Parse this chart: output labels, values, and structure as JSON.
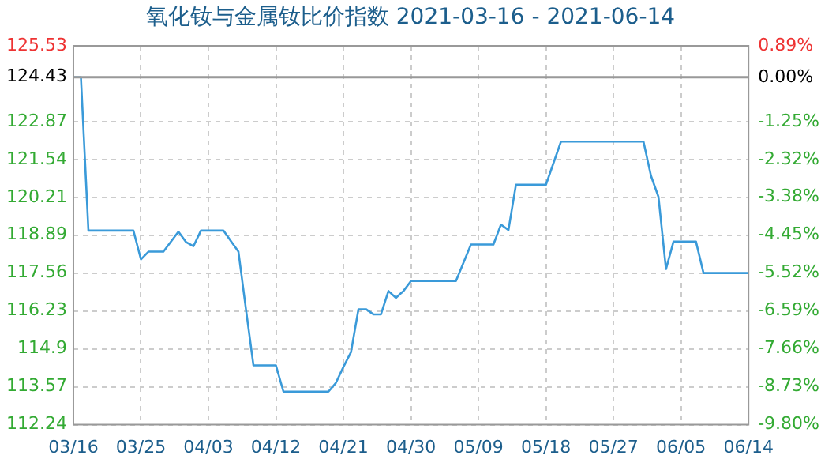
{
  "chart_data": {
    "type": "line",
    "title": "氧化钕与金属钕比价指数 2021-03-16 - 2021-06-14",
    "x": [
      "2021-03-16",
      "2021-03-17",
      "2021-03-18",
      "2021-03-24",
      "2021-03-25",
      "2021-03-26",
      "2021-03-28",
      "2021-03-30",
      "2021-03-31",
      "2021-04-01",
      "2021-04-02",
      "2021-04-05",
      "2021-04-06",
      "2021-04-07",
      "2021-04-08",
      "2021-04-09",
      "2021-04-12",
      "2021-04-13",
      "2021-04-19",
      "2021-04-20",
      "2021-04-21",
      "2021-04-22",
      "2021-04-23",
      "2021-04-24",
      "2021-04-25",
      "2021-04-26",
      "2021-04-27",
      "2021-04-28",
      "2021-04-29",
      "2021-04-30",
      "2021-05-06",
      "2021-05-08",
      "2021-05-11",
      "2021-05-12",
      "2021-05-13",
      "2021-05-14",
      "2021-05-18",
      "2021-05-20",
      "2021-05-31",
      "2021-06-01",
      "2021-06-02",
      "2021-06-03",
      "2021-06-04",
      "2021-06-07",
      "2021-06-08",
      "2021-06-14"
    ],
    "series": [
      {
        "color": "#3a9ad9",
        "values": [
          124.43,
          124.43,
          119.05,
          119.05,
          118.04,
          118.31,
          118.31,
          119.01,
          118.65,
          118.5,
          119.05,
          119.05,
          118.68,
          118.31,
          116.29,
          114.32,
          114.32,
          113.4,
          113.4,
          113.71,
          114.27,
          114.78,
          116.29,
          116.29,
          116.11,
          116.11,
          116.93,
          116.69,
          116.93,
          117.28,
          117.28,
          118.56,
          118.56,
          119.26,
          119.07,
          120.66,
          120.66,
          122.17,
          122.17,
          120.97,
          120.23,
          117.7,
          118.66,
          118.66,
          117.56,
          117.56
        ]
      }
    ],
    "xlim": [
      "2021-03-16",
      "2021-06-14"
    ],
    "xticks": [
      {
        "value": "2021-03-16",
        "label": "03/16"
      },
      {
        "value": "2021-03-25",
        "label": "03/25"
      },
      {
        "value": "2021-04-03",
        "label": "04/03"
      },
      {
        "value": "2021-04-12",
        "label": "04/12"
      },
      {
        "value": "2021-04-21",
        "label": "04/21"
      },
      {
        "value": "2021-04-30",
        "label": "04/30"
      },
      {
        "value": "2021-05-09",
        "label": "05/09"
      },
      {
        "value": "2021-05-18",
        "label": "05/18"
      },
      {
        "value": "2021-05-27",
        "label": "05/27"
      },
      {
        "value": "2021-06-05",
        "label": "06/05"
      },
      {
        "value": "2021-06-14",
        "label": "06/14"
      }
    ],
    "ylim": [
      112.24,
      125.53
    ],
    "yticks": [
      112.24,
      113.57,
      114.9,
      116.23,
      117.56,
      118.89,
      120.21,
      121.54,
      122.87,
      124.43,
      125.53
    ],
    "y2lim": [
      -9.8,
      0.89
    ],
    "y2ticks": [
      {
        "value": -9.8,
        "label": "-9.80%"
      },
      {
        "value": -8.73,
        "label": "-8.73%"
      },
      {
        "value": -7.66,
        "label": "-7.66%"
      },
      {
        "value": -6.59,
        "label": "-6.59%"
      },
      {
        "value": -5.52,
        "label": "-5.52%"
      },
      {
        "value": -4.45,
        "label": "-4.45%"
      },
      {
        "value": -3.38,
        "label": "-3.38%"
      },
      {
        "value": -2.32,
        "label": "-2.32%"
      },
      {
        "value": -1.25,
        "label": "-1.25%"
      },
      {
        "value": 0,
        "label": "0.00%"
      },
      {
        "value": 0.89,
        "label": "0.89%"
      }
    ],
    "ref_lines": [
      {
        "axis": "y",
        "value": 124.43,
        "color": "#999999"
      }
    ],
    "grid": true,
    "legend": false,
    "marker": "none",
    "line_style": "solid"
  }
}
